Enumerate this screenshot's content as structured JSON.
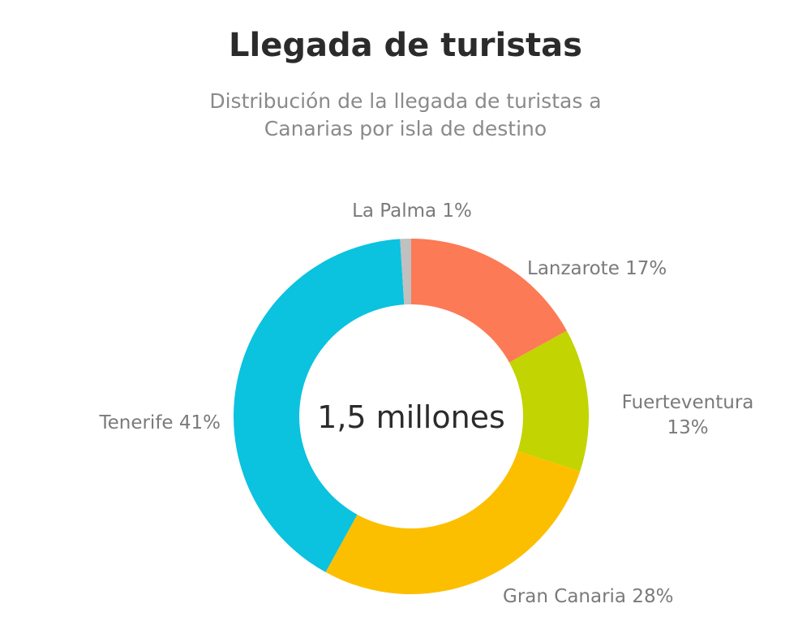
{
  "chart_data": {
    "type": "pie",
    "title": "Llegada de turistas",
    "subtitle": "Distribución de la llegada de turistas a Canarias por isla de destino",
    "center_text": "1,5 millones",
    "unit": "%",
    "slices": [
      {
        "label": "Lanzarote",
        "value": 17,
        "color": "#fc7a55"
      },
      {
        "label": "Fuerteventura",
        "value": 13,
        "color": "#c2d401"
      },
      {
        "label": "Gran Canaria",
        "value": 28,
        "color": "#fcbf00"
      },
      {
        "label": "Tenerife",
        "value": 41,
        "color": "#0bc2df"
      },
      {
        "label": "La Palma",
        "value": 1,
        "color": "#c0c0c0"
      }
    ],
    "legend": "none",
    "donut": true
  }
}
